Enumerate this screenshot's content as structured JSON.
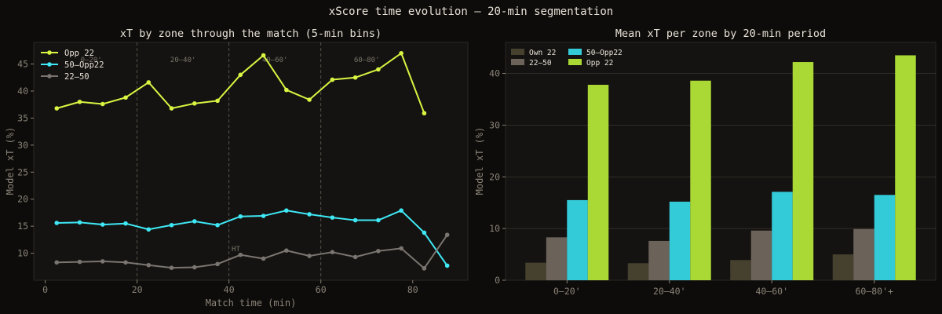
{
  "figure": {
    "title": "xScore time evolution — 20-min segmentation"
  },
  "chart_data": [
    {
      "type": "line",
      "title": "xT by zone through the match (5-min bins)",
      "xlabel": "Match time (min)",
      "ylabel": "Model xT (%)",
      "xlim": [
        -2.5,
        92
      ],
      "ylim": [
        5,
        49
      ],
      "xticks": [
        0,
        20,
        40,
        60,
        80
      ],
      "yticks": [
        10,
        15,
        20,
        25,
        30,
        35,
        40,
        45
      ],
      "x": [
        2.5,
        7.5,
        12.5,
        17.5,
        22.5,
        27.5,
        32.5,
        37.5,
        42.5,
        47.5,
        52.5,
        57.5,
        62.5,
        67.5,
        72.5,
        77.5,
        82.5,
        87.5
      ],
      "series": [
        {
          "name": "Opp 22",
          "color": "#d8f542",
          "values": [
            36.8,
            38.0,
            37.6,
            38.8,
            41.6,
            36.8,
            37.7,
            38.2,
            43.0,
            46.6,
            40.2,
            38.4,
            42.1,
            42.5,
            44.0,
            47.0,
            35.9,
            null
          ]
        },
        {
          "name": "50–Opp22",
          "color": "#3ee8f5",
          "values": [
            15.6,
            15.7,
            15.3,
            15.5,
            14.4,
            15.2,
            15.9,
            15.2,
            16.8,
            16.9,
            17.9,
            17.2,
            16.6,
            16.1,
            16.1,
            17.9,
            13.8,
            7.7
          ]
        },
        {
          "name": "22–50",
          "color": "#7a7570",
          "values": [
            8.3,
            8.4,
            8.5,
            8.3,
            7.8,
            7.3,
            7.4,
            8.0,
            9.7,
            9.0,
            10.5,
            9.5,
            10.2,
            9.3,
            10.4,
            10.9,
            7.2,
            13.4
          ]
        }
      ],
      "vlines": [
        20,
        40,
        60
      ],
      "annotations": [
        {
          "text": "0–20'",
          "x": 10,
          "y": 45.8
        },
        {
          "text": "20–40'",
          "x": 30,
          "y": 45.8
        },
        {
          "text": "40–60'",
          "x": 50,
          "y": 45.8
        },
        {
          "text": "60–80'",
          "x": 70,
          "y": 45.8
        },
        {
          "text": "HT",
          "x": 41.5,
          "y": 10.8
        }
      ],
      "grid": false,
      "legend": "top-left"
    },
    {
      "type": "bar",
      "title": "Mean xT per zone by 20-min period",
      "xlabel": "",
      "ylabel": "Model xT (%)",
      "ylim": [
        0,
        46
      ],
      "yticks": [
        0,
        10,
        20,
        30,
        40
      ],
      "categories": [
        "0–20'",
        "20–40'",
        "40–60'",
        "60–80'+"
      ],
      "series": [
        {
          "name": "Own 22",
          "color": "#46412f",
          "values": [
            3.4,
            3.3,
            3.9,
            5.0
          ]
        },
        {
          "name": "22–50",
          "color": "#6b625a",
          "values": [
            8.3,
            7.6,
            9.6,
            9.9
          ]
        },
        {
          "name": "50–Opp22",
          "color": "#33cbd8",
          "values": [
            15.5,
            15.2,
            17.1,
            16.5
          ]
        },
        {
          "name": "Opp 22",
          "color": "#aad834",
          "values": [
            37.8,
            38.6,
            42.2,
            43.5
          ]
        }
      ],
      "grid": true,
      "legend": "top-left"
    }
  ]
}
